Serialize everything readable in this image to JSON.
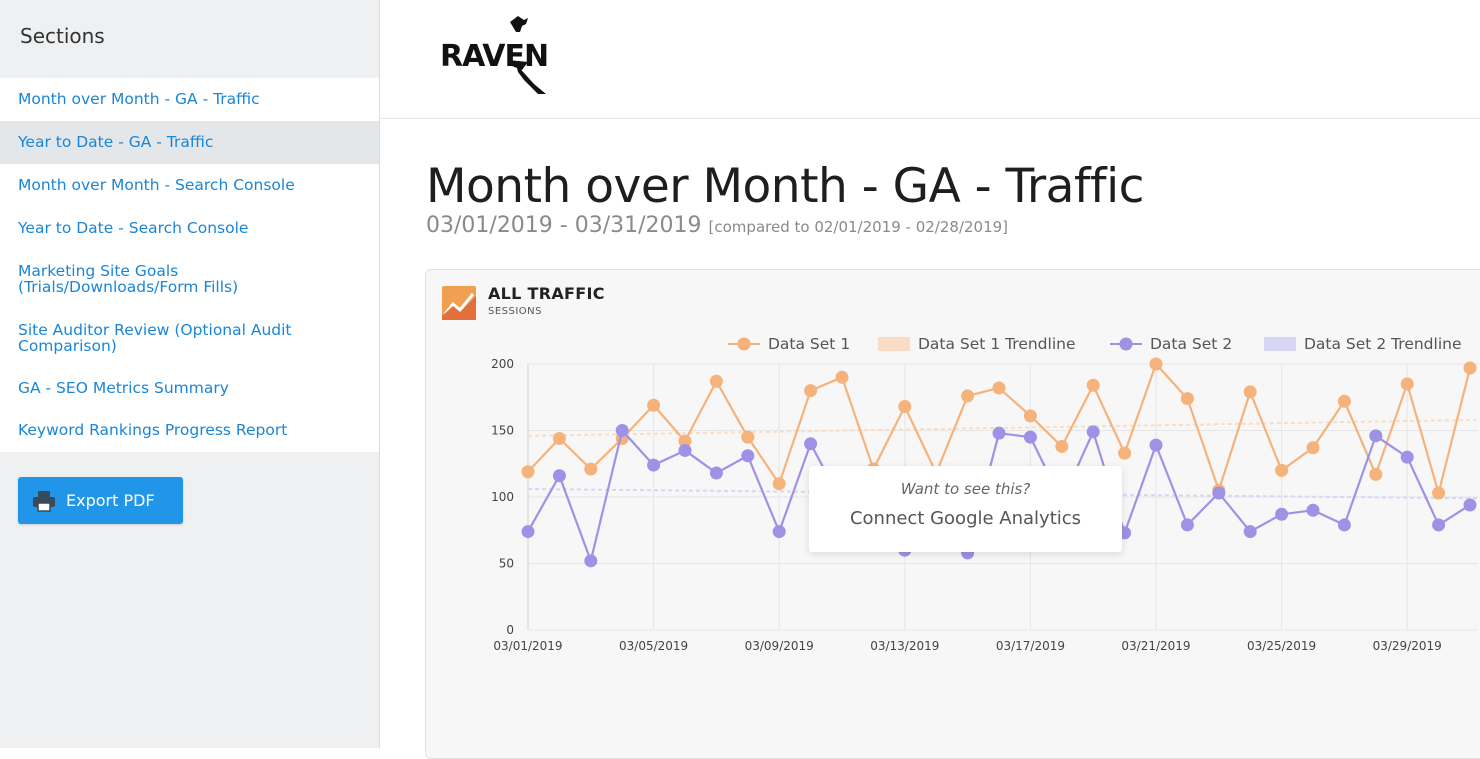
{
  "sidebar": {
    "title": "Sections",
    "items": [
      {
        "label": "Month over Month - GA - Traffic",
        "active": false
      },
      {
        "label": "Year to Date - GA - Traffic",
        "active": true
      },
      {
        "label": "Month over Month - Search Console",
        "active": false
      },
      {
        "label": "Year to Date - Search Console",
        "active": false
      },
      {
        "label": "Marketing Site Goals",
        "label2": "(Trials/Downloads/Form Fills)",
        "active": false
      },
      {
        "label": "Site Auditor Review (Optional Audit",
        "label2": "Comparison)",
        "active": false
      },
      {
        "label": "GA - SEO Metrics Summary",
        "active": false
      },
      {
        "label": "Keyword Rankings Progress Report",
        "active": false
      }
    ],
    "export_label": "Export PDF",
    "export_icon": "printer-icon"
  },
  "header": {
    "logo_text": "RAVEN",
    "logo_icon": "raven-bird-icon"
  },
  "main": {
    "title": "Month over Month - GA - Traffic",
    "date_range": "03/01/2019 - 03/31/2019",
    "compare_text": "[compared to 02/01/2019 - 02/28/2019]"
  },
  "card": {
    "title": "ALL TRAFFIC",
    "subtitle": "SESSIONS",
    "icon": "chart-trend-icon",
    "overlay_question": "Want to see this?",
    "overlay_link": "Connect Google Analytics"
  },
  "colors": {
    "series1": "#f5b27a",
    "series2": "#9d92e6",
    "link": "#1a86d8",
    "button": "#2196e8"
  },
  "chart_data": {
    "type": "line",
    "title": "ALL TRAFFIC",
    "subtitle": "SESSIONS",
    "xlabel": "",
    "ylabel": "",
    "ylim": [
      0,
      200
    ],
    "yticks": [
      0,
      50,
      100,
      150,
      200
    ],
    "grid": true,
    "legend": "top-right",
    "x": [
      "03/01/2019",
      "03/02/2019",
      "03/03/2019",
      "03/04/2019",
      "03/05/2019",
      "03/06/2019",
      "03/07/2019",
      "03/08/2019",
      "03/09/2019",
      "03/10/2019",
      "03/11/2019",
      "03/12/2019",
      "03/13/2019",
      "03/14/2019",
      "03/15/2019",
      "03/16/2019",
      "03/17/2019",
      "03/18/2019",
      "03/19/2019",
      "03/20/2019",
      "03/21/2019",
      "03/22/2019",
      "03/23/2019",
      "03/24/2019",
      "03/25/2019",
      "03/26/2019",
      "03/27/2019",
      "03/28/2019",
      "03/29/2019",
      "03/30/2019",
      "03/31/2019"
    ],
    "xticks": [
      "03/01/2019",
      "03/05/2019",
      "03/09/2019",
      "03/13/2019",
      "03/17/2019",
      "03/21/2019",
      "03/25/2019",
      "03/29/2019"
    ],
    "series": [
      {
        "name": "Data Set 1",
        "color": "#f5b27a",
        "values": [
          119,
          144,
          121,
          144,
          169,
          142,
          187,
          145,
          110,
          180,
          190,
          121,
          168,
          118,
          176,
          182,
          161,
          138,
          184,
          133,
          200,
          174,
          105,
          179,
          120,
          137,
          172,
          117,
          185,
          103,
          197
        ]
      },
      {
        "name": "Data Set 2",
        "color": "#9d92e6",
        "values": [
          74,
          116,
          52,
          150,
          124,
          135,
          118,
          131,
          74,
          140,
          96,
          88,
          60,
          118,
          58,
          148,
          145,
          97,
          149,
          73,
          139,
          79,
          103,
          74,
          87,
          90,
          79,
          146,
          130,
          79,
          94
        ]
      }
    ],
    "trendlines": [
      {
        "name": "Data Set 1 Trendline",
        "color": "#f9dcc4",
        "start": 146,
        "end": 158
      },
      {
        "name": "Data Set 2 Trendline",
        "color": "#d9d6f5",
        "start": 106,
        "end": 99
      }
    ]
  }
}
